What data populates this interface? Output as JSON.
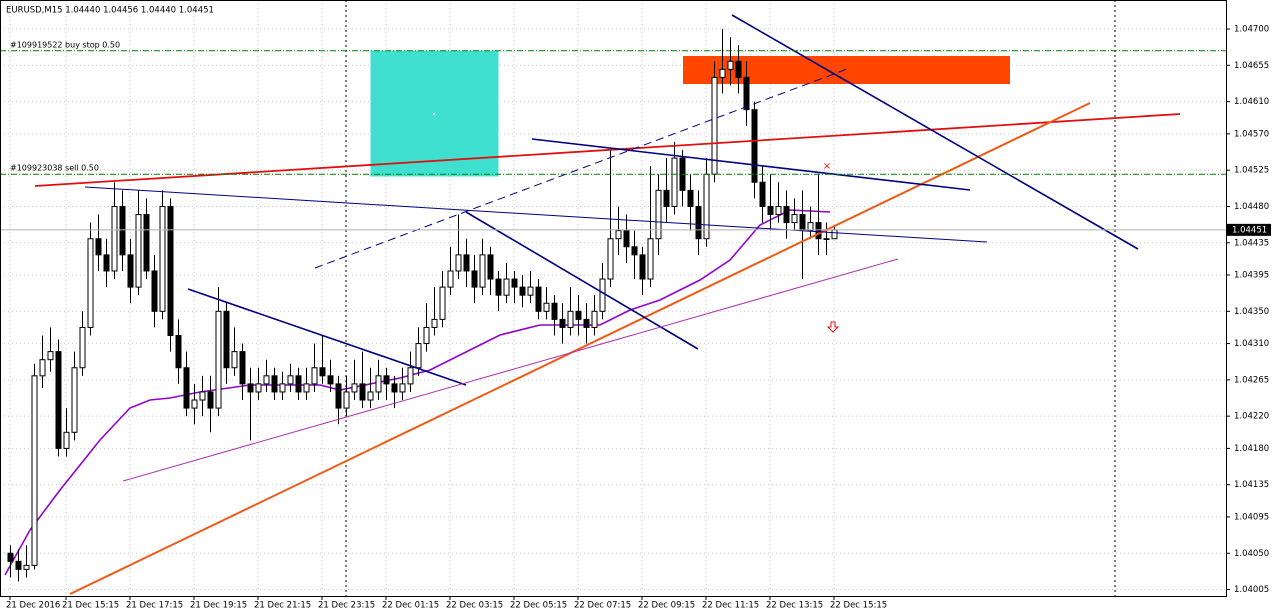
{
  "chart_data": {
    "type": "candlestick",
    "title": "EURUSD,M15  1.04440 1.04456 1.04440 1.04451",
    "ylim": [
      1.03997,
      1.04736
    ],
    "yticks": [
      {
        "value": 1.047,
        "label": "1.04700"
      },
      1.04655,
      {
        "value": 1.0461,
        "label": "1.04610"
      },
      {
        "value": 1.0457,
        "label": "1.04570"
      },
      1.04525,
      {
        "value": 1.0448,
        "label": "1.04480"
      },
      1.04435,
      1.04395,
      {
        "value": 1.0435,
        "label": "1.04350"
      },
      {
        "value": 1.0431,
        "label": "1.04310"
      },
      1.04265,
      {
        "value": 1.0422,
        "label": "1.04220"
      },
      {
        "value": 1.0418,
        "label": "1.04180"
      },
      1.04135,
      1.04095,
      {
        "value": 1.0405,
        "label": "1.04050"
      },
      1.04005
    ],
    "grid": true,
    "last_price": 1.04451,
    "orders": [
      {
        "label": "#109919522 buy stop 0.50",
        "price": 1.04673
      },
      {
        "label": "#109923038 sell 0.50",
        "price": 1.0452
      }
    ],
    "categories": [
      "21 Dec 2016",
      null,
      null,
      null,
      null,
      null,
      null,
      "21 Dec 15:15",
      null,
      null,
      null,
      null,
      null,
      null,
      null,
      "21 Dec 17:15",
      null,
      null,
      null,
      null,
      null,
      null,
      null,
      "21 Dec 19:15",
      null,
      null,
      null,
      null,
      null,
      null,
      null,
      "21 Dec 21:15",
      null,
      null,
      null,
      null,
      null,
      null,
      null,
      "21 Dec 23:15",
      null,
      null,
      null,
      null,
      null,
      null,
      null,
      "22 Dec 01:15",
      null,
      null,
      null,
      null,
      null,
      null,
      null,
      "22 Dec 03:15",
      null,
      null,
      null,
      null,
      null,
      null,
      null,
      "22 Dec 05:15",
      null,
      null,
      null,
      null,
      null,
      null,
      null,
      "22 Dec 07:15",
      null,
      null,
      null,
      null,
      null,
      null,
      null,
      "22 Dec 09:15",
      null,
      null,
      null,
      null,
      null,
      null,
      null,
      "22 Dec 11:15",
      null,
      null,
      null,
      null,
      null,
      null,
      null,
      "22 Dec 13:15",
      null,
      null,
      null,
      null,
      null,
      null,
      null,
      "22 Dec 15:15"
    ],
    "candles": [
      [
        1.0405,
        1.0406,
        1.0402,
        1.0404
      ],
      [
        1.0404,
        1.04055,
        1.04015,
        1.0403
      ],
      [
        1.0403,
        1.0406,
        1.0402,
        1.04035
      ],
      [
        1.04035,
        1.04285,
        1.0403,
        1.0427
      ],
      [
        1.0427,
        1.0432,
        1.04255,
        1.0429
      ],
      [
        1.0429,
        1.0433,
        1.04275,
        1.043
      ],
      [
        1.043,
        1.04315,
        1.0417,
        1.0418
      ],
      [
        1.0418,
        1.0423,
        1.0417,
        1.042
      ],
      [
        1.042,
        1.043,
        1.0419,
        1.0428
      ],
      [
        1.0428,
        1.0435,
        1.0427,
        1.0433
      ],
      [
        1.0433,
        1.0446,
        1.0432,
        1.0444
      ],
      [
        1.0444,
        1.0447,
        1.044,
        1.0442
      ],
      [
        1.0442,
        1.0444,
        1.0438,
        1.044
      ],
      [
        1.044,
        1.0451,
        1.0439,
        1.0448
      ],
      [
        1.0448,
        1.045,
        1.044,
        1.0442
      ],
      [
        1.0442,
        1.0444,
        1.0436,
        1.0438
      ],
      [
        1.0438,
        1.045,
        1.0437,
        1.0447
      ],
      [
        1.0447,
        1.0449,
        1.0439,
        1.044
      ],
      [
        1.044,
        1.0442,
        1.0433,
        1.0435
      ],
      [
        1.0435,
        1.045,
        1.0434,
        1.0448
      ],
      [
        1.0448,
        1.0449,
        1.043,
        1.0432
      ],
      [
        1.0432,
        1.0434,
        1.0426,
        1.0428
      ],
      [
        1.0428,
        1.043,
        1.0422,
        1.0423
      ],
      [
        1.0423,
        1.0426,
        1.0421,
        1.0424
      ],
      [
        1.0424,
        1.0427,
        1.0422,
        1.0425
      ],
      [
        1.0425,
        1.0427,
        1.042,
        1.0423
      ],
      [
        1.0423,
        1.0438,
        1.0422,
        1.0435
      ],
      [
        1.0435,
        1.0436,
        1.0426,
        1.0428
      ],
      [
        1.0428,
        1.0433,
        1.0427,
        1.043
      ],
      [
        1.043,
        1.0431,
        1.0424,
        1.0426
      ],
      [
        1.0426,
        1.0428,
        1.0419,
        1.0425
      ],
      [
        1.0425,
        1.0428,
        1.0424,
        1.0426
      ],
      [
        1.0426,
        1.0429,
        1.0425,
        1.0427
      ],
      [
        1.0427,
        1.0428,
        1.0424,
        1.0425
      ],
      [
        1.0425,
        1.04275,
        1.0424,
        1.0426
      ],
      [
        1.0426,
        1.04285,
        1.0425,
        1.0427
      ],
      [
        1.0427,
        1.0428,
        1.0424,
        1.0425
      ],
      [
        1.0425,
        1.0428,
        1.0424,
        1.0426
      ],
      [
        1.0426,
        1.0431,
        1.0425,
        1.0428
      ],
      [
        1.0428,
        1.0432,
        1.0426,
        1.0427
      ],
      [
        1.0427,
        1.0429,
        1.0425,
        1.0426
      ],
      [
        1.0426,
        1.0427,
        1.0421,
        1.0423
      ],
      [
        1.0423,
        1.0427,
        1.0422,
        1.0425
      ],
      [
        1.0425,
        1.0429,
        1.0424,
        1.0426
      ],
      [
        1.0426,
        1.043,
        1.0423,
        1.0424
      ],
      [
        1.0424,
        1.0428,
        1.0423,
        1.0425
      ],
      [
        1.0425,
        1.0429,
        1.0424,
        1.0427
      ],
      [
        1.0427,
        1.0428,
        1.0424,
        1.0426
      ],
      [
        1.0426,
        1.0427,
        1.0423,
        1.0425
      ],
      [
        1.0425,
        1.0428,
        1.0424,
        1.0426
      ],
      [
        1.0426,
        1.043,
        1.0425,
        1.0428
      ],
      [
        1.0428,
        1.0433,
        1.0427,
        1.0431
      ],
      [
        1.0431,
        1.0436,
        1.043,
        1.0433
      ],
      [
        1.0433,
        1.0438,
        1.0432,
        1.0434
      ],
      [
        1.0434,
        1.044,
        1.0433,
        1.0438
      ],
      [
        1.0438,
        1.0443,
        1.0437,
        1.044
      ],
      [
        1.044,
        1.0447,
        1.0439,
        1.0442
      ],
      [
        1.0442,
        1.0444,
        1.0438,
        1.044
      ],
      [
        1.044,
        1.0442,
        1.0436,
        1.0438
      ],
      [
        1.0438,
        1.0444,
        1.0437,
        1.0442
      ],
      [
        1.0442,
        1.0443,
        1.0437,
        1.0439
      ],
      [
        1.0439,
        1.044,
        1.0435,
        1.0437
      ],
      [
        1.0437,
        1.0441,
        1.0436,
        1.0439
      ],
      [
        1.0439,
        1.044,
        1.0436,
        1.0438
      ],
      [
        1.0438,
        1.04395,
        1.04355,
        1.0437
      ],
      [
        1.0437,
        1.044,
        1.0436,
        1.0438
      ],
      [
        1.0438,
        1.0439,
        1.0434,
        1.0435
      ],
      [
        1.0435,
        1.0438,
        1.0434,
        1.0436
      ],
      [
        1.0436,
        1.0437,
        1.0432,
        1.0434
      ],
      [
        1.0434,
        1.0436,
        1.0431,
        1.0433
      ],
      [
        1.0433,
        1.0438,
        1.0432,
        1.0435
      ],
      [
        1.0435,
        1.0437,
        1.0432,
        1.0434
      ],
      [
        1.0434,
        1.0436,
        1.0431,
        1.0433
      ],
      [
        1.0433,
        1.0437,
        1.0432,
        1.0435
      ],
      [
        1.0435,
        1.0441,
        1.0434,
        1.0439
      ],
      [
        1.0439,
        1.0455,
        1.0438,
        1.0444
      ],
      [
        1.0444,
        1.0448,
        1.0442,
        1.0445
      ],
      [
        1.0445,
        1.0447,
        1.0441,
        1.0443
      ],
      [
        1.0443,
        1.0445,
        1.0439,
        1.0442
      ],
      [
        1.0442,
        1.0443,
        1.0437,
        1.0439
      ],
      [
        1.0439,
        1.0453,
        1.0438,
        1.0444
      ],
      [
        1.0444,
        1.0452,
        1.0442,
        1.045
      ],
      [
        1.045,
        1.0454,
        1.0446,
        1.0448
      ],
      [
        1.0448,
        1.0456,
        1.0447,
        1.0454
      ],
      [
        1.0454,
        1.0455,
        1.0448,
        1.045
      ],
      [
        1.045,
        1.0452,
        1.0445,
        1.0448
      ],
      [
        1.0448,
        1.045,
        1.0442,
        1.0444
      ],
      [
        1.0444,
        1.0454,
        1.0443,
        1.0452
      ],
      [
        1.0452,
        1.0466,
        1.0451,
        1.0464
      ],
      [
        1.0464,
        1.047,
        1.0462,
        1.0465
      ],
      [
        1.0465,
        1.0469,
        1.0463,
        1.0466
      ],
      [
        1.0466,
        1.0468,
        1.0462,
        1.0464
      ],
      [
        1.0464,
        1.0466,
        1.0458,
        1.046
      ],
      [
        1.046,
        1.0461,
        1.0449,
        1.0451
      ],
      [
        1.0451,
        1.0453,
        1.0446,
        1.0448
      ],
      [
        1.0448,
        1.0452,
        1.0445,
        1.0447
      ],
      [
        1.0447,
        1.0451,
        1.0446,
        1.0448
      ],
      [
        1.0448,
        1.045,
        1.0444,
        1.0446
      ],
      [
        1.0446,
        1.0449,
        1.0445,
        1.0447
      ],
      [
        1.0447,
        1.045,
        1.0439,
        1.0445
      ],
      [
        1.0445,
        1.0448,
        1.0444,
        1.0446
      ],
      [
        1.0446,
        1.0452,
        1.0442,
        1.0444
      ],
      [
        1.0444,
        1.0446,
        1.0442,
        1.0444
      ],
      [
        1.0444,
        1.04456,
        1.0444,
        1.04451
      ]
    ]
  }
}
